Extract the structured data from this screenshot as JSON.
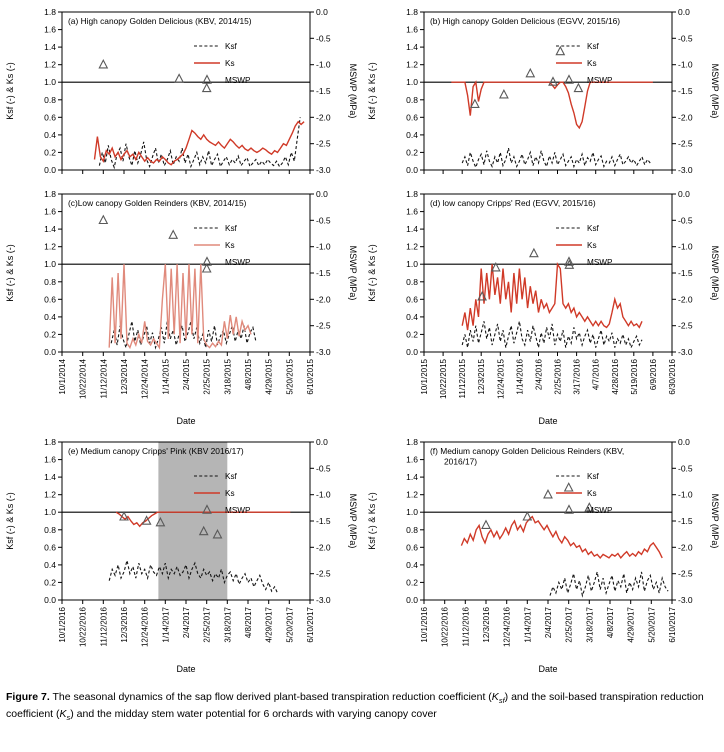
{
  "caption": {
    "label": "Figure 7.",
    "part1": " The seasonal dynamics of the sap flow derived plant-based transpiration reduction coefficient (",
    "k1": "K",
    "sub1": "sf",
    "part2": ") and the soil-based transpiration reduction coefficient (",
    "k2": "K",
    "sub2": "s",
    "part3": ") and the midday stem water potential for 6 orchards with varying canopy cover"
  },
  "axes": {
    "left_label": "Ksf (-) & Ks (-)",
    "right_label": "MSWP (MPa)",
    "x_label": "Date",
    "left_ticks": [
      0,
      0.2,
      0.4,
      0.6,
      0.8,
      1,
      1.2,
      1.4,
      1.6,
      1.8
    ],
    "right_ticks": [
      0,
      -0.5,
      -1,
      -1.5,
      -2,
      -2.5,
      -3
    ],
    "left_range": [
      0,
      1.8
    ],
    "right_range": [
      -3,
      0
    ],
    "ref_line": 1.0,
    "grid": false,
    "legend_position": "inside-upper-right"
  },
  "legend": {
    "ksf": "Ksf",
    "ks": "Ks",
    "mswp": "MSWP"
  },
  "colors": {
    "ks_red": "#d03a28",
    "ks_red_light": "#e08a7c",
    "ksf_black": "#141414",
    "marker": "#595959",
    "band": "#b5b5b5"
  },
  "xticks": {
    "s2014": [
      "10/1/2014",
      "10/22/2014",
      "11/12/2014",
      "12/3/2014",
      "12/24/2014",
      "1/14/2015",
      "2/4/2015",
      "2/25/2015",
      "3/18/2015",
      "4/8/2015",
      "4/29/2015",
      "5/20/2015",
      "6/10/2015"
    ],
    "s2015": [
      "10/1/2015",
      "10/22/2015",
      "11/12/2015",
      "12/3/2015",
      "12/24/2015",
      "1/14/2016",
      "2/4/2016",
      "2/25/2016",
      "3/17/2016",
      "4/7/2016",
      "4/28/2016",
      "5/19/2016",
      "6/9/2016",
      "6/30/2016"
    ],
    "s2016": [
      "10/1/2016",
      "10/22/2016",
      "11/12/2016",
      "12/3/2016",
      "12/24/2016",
      "1/14/2017",
      "2/4/2017",
      "2/25/2017",
      "3/18/2017",
      "4/8/2017",
      "4/29/2017",
      "5/20/2017",
      "6/10/2017"
    ]
  },
  "chart_data": [
    {
      "id": "a",
      "type": "line",
      "title_lines": [
        "(a) High canopy  Golden Delicious (KBV, 2014/15)"
      ],
      "xticks_key": "s2014",
      "span": 252,
      "show_x": false,
      "band": null,
      "ks": {
        "color_key": "ks_red",
        "start": 33,
        "step": 3,
        "values": [
          0.12,
          0.38,
          0.15,
          0.1,
          0.22,
          0.18,
          0.25,
          0.15,
          0.2,
          0.12,
          0.18,
          0.22,
          0.15,
          0.18,
          0.12,
          0.2,
          0.15,
          0.1,
          0.14,
          0.1,
          0.08,
          0.12,
          0.1,
          0.15,
          0.12,
          0.08,
          0.06,
          0.1,
          0.12,
          0.15,
          0.18,
          0.25,
          0.35,
          0.45,
          0.42,
          0.38,
          0.35,
          0.4,
          0.35,
          0.32,
          0.3,
          0.28,
          0.32,
          0.28,
          0.25,
          0.3,
          0.35,
          0.32,
          0.28,
          0.25,
          0.28,
          0.24,
          0.22,
          0.25,
          0.22,
          0.2,
          0.22,
          0.25,
          0.23,
          0.2,
          0.18,
          0.22,
          0.2,
          0.25,
          0.3,
          0.28,
          0.35,
          0.42,
          0.5,
          0.55,
          0.52,
          0.55
        ]
      },
      "ksf": {
        "start": 38,
        "step": 3,
        "values": [
          0.05,
          0.2,
          0.08,
          0.28,
          0.12,
          0.03,
          0.18,
          0.25,
          0.1,
          0.3,
          0.15,
          0.05,
          0.22,
          0.08,
          0.18,
          0.32,
          0.12,
          0.04,
          0.15,
          0.25,
          0.08,
          0.18,
          0.05,
          0.12,
          0.22,
          0.06,
          0.15,
          0.1,
          0.25,
          0.08,
          0.18,
          0.04,
          0.12,
          0.2,
          0.06,
          0.15,
          0.08,
          0.22,
          0.05,
          0.12,
          0.18,
          0.04,
          0.1,
          0.15,
          0.06,
          0.12,
          0.08,
          0.16,
          0.05,
          0.1,
          0.14,
          0.04,
          0.08,
          0.12,
          0.05,
          0.1,
          0.06,
          0.12,
          0.08,
          0.05,
          0.1,
          0.04,
          0.08,
          0.15,
          0.06,
          0.2,
          0.1,
          0.35,
          0.6
        ]
      },
      "mswp": [
        [
          42,
          -1.0
        ],
        [
          119,
          -1.27
        ],
        [
          147,
          -1.45
        ]
      ]
    },
    {
      "id": "b",
      "type": "line",
      "title_lines": [
        "(b) High canopy Golden Delicious (EGVV, 2015/16)"
      ],
      "xticks_key": "s2015",
      "span": 273,
      "show_x": false,
      "band": null,
      "ks": {
        "color_key": "ks_red",
        "start": 30,
        "step": 3,
        "values": [
          1,
          1,
          1,
          1,
          1,
          1,
          0.85,
          0.62,
          0.95,
          1,
          0.78,
          0.92,
          1,
          1,
          1,
          1,
          1,
          1,
          1,
          1,
          1,
          1,
          1,
          1,
          1,
          1,
          1,
          1,
          1,
          1,
          1,
          1,
          1,
          1,
          1,
          1,
          1,
          0.97,
          0.93,
          0.97,
          1,
          1,
          0.95,
          0.88,
          0.75,
          0.65,
          0.52,
          0.48,
          0.55,
          0.72,
          0.9,
          1,
          1,
          1,
          1,
          1,
          1,
          1,
          1,
          1,
          1,
          1,
          1,
          1,
          1,
          1,
          1,
          1,
          1,
          1,
          1,
          1,
          1,
          1,
          1
        ]
      },
      "ksf": {
        "start": 42,
        "step": 3,
        "values": [
          0.08,
          0.15,
          0.05,
          0.2,
          0.1,
          0.03,
          0.12,
          0.18,
          0.06,
          0.22,
          0.1,
          0.04,
          0.15,
          0.08,
          0.2,
          0.05,
          0.12,
          0.25,
          0.08,
          0.15,
          0.04,
          0.1,
          0.18,
          0.06,
          0.12,
          0.2,
          0.05,
          0.15,
          0.08,
          0.22,
          0.1,
          0.04,
          0.16,
          0.08,
          0.2,
          0.06,
          0.12,
          0.18,
          0.05,
          0.1,
          0.15,
          0.04,
          0.12,
          0.08,
          0.18,
          0.05,
          0.14,
          0.1,
          0.2,
          0.06,
          0.12,
          0.16,
          0.04,
          0.1,
          0.08,
          0.15,
          0.05,
          0.12,
          0.18,
          0.06,
          0.1,
          0.15,
          0.08,
          0.12,
          0.05,
          0.1,
          0.15,
          0.06,
          0.12,
          0.08
        ]
      },
      "mswp": [
        [
          56,
          -1.75
        ],
        [
          88,
          -1.57
        ],
        [
          117,
          -1.17
        ],
        [
          142,
          -1.33
        ],
        [
          150,
          -0.75
        ],
        [
          170,
          -1.45
        ]
      ]
    },
    {
      "id": "c",
      "type": "line",
      "title_lines": [
        "(c)Low canopy Golden Reinders (KBV, 2014/15)"
      ],
      "xticks_key": "s2014",
      "span": 252,
      "show_x": true,
      "band": null,
      "ks": {
        "color_key": "ks_red_light",
        "start": 48,
        "step": 3,
        "values": [
          0.05,
          0.85,
          0.1,
          0.9,
          0.15,
          1,
          0.1,
          0.05,
          0.15,
          0.08,
          0.2,
          0.1,
          0.35,
          0.12,
          0.08,
          0.15,
          0.1,
          0.05,
          0.6,
          1,
          0.15,
          0.95,
          0.2,
          1,
          0.1,
          0.9,
          0.15,
          1,
          0.2,
          0.95,
          0.1,
          1,
          0.15,
          0.08,
          0.05,
          0.1,
          0.06,
          0.12,
          0.08,
          0.35,
          0.15,
          0.42,
          0.2,
          0.4,
          0.18,
          0.35,
          0.25,
          0.3,
          0.2
        ]
      },
      "ksf": {
        "start": 50,
        "step": 3,
        "values": [
          0.1,
          0.25,
          0.08,
          0.3,
          0.15,
          0.05,
          0.2,
          0.35,
          0.12,
          0.25,
          0.08,
          0.18,
          0.3,
          0.1,
          0.22,
          0.05,
          0.15,
          0.28,
          0.1,
          0.35,
          0.15,
          0.25,
          0.08,
          0.2,
          0.3,
          0.12,
          0.22,
          0.35,
          0.15,
          0.28,
          0.1,
          0.2,
          0.05,
          0.25,
          0.12,
          0.3,
          0.08,
          0.18,
          0.25,
          0.1,
          0.2,
          0.3,
          0.12,
          0.25,
          0.15,
          0.3,
          0.1,
          0.22,
          0.28,
          0.12
        ]
      },
      "mswp": [
        [
          42,
          -0.5
        ],
        [
          113,
          -0.78
        ],
        [
          147,
          -1.42
        ]
      ]
    },
    {
      "id": "d",
      "type": "line",
      "title_lines": [
        "(d) low canopy  Cripps' Red (EGVV, 2015/16)"
      ],
      "xticks_key": "s2015",
      "span": 273,
      "show_x": true,
      "band": null,
      "ks": {
        "color_key": "ks_red",
        "start": 42,
        "step": 3,
        "values": [
          0.3,
          0.45,
          0.25,
          0.5,
          0.3,
          0.6,
          0.4,
          0.95,
          0.55,
          0.9,
          0.6,
          1,
          0.65,
          0.85,
          0.55,
          0.95,
          0.6,
          0.8,
          0.45,
          0.9,
          0.55,
          0.95,
          0.6,
          0.85,
          0.5,
          0.75,
          0.55,
          0.7,
          0.45,
          0.6,
          0.5,
          0.55,
          0.45,
          0.5,
          0.55,
          1,
          0.95,
          0.55,
          0.5,
          0.55,
          0.45,
          0.5,
          0.4,
          0.45,
          0.4,
          0.35,
          0.4,
          0.35,
          0.3,
          0.35,
          0.3,
          0.35,
          0.3,
          0.28,
          0.32,
          0.45,
          0.6,
          0.5,
          0.55,
          0.4,
          0.35,
          0.3,
          0.35,
          0.3,
          0.32,
          0.28,
          0.35
        ]
      },
      "ksf": {
        "start": 42,
        "step": 3,
        "values": [
          0.08,
          0.2,
          0.05,
          0.25,
          0.12,
          0.3,
          0.1,
          0.22,
          0.35,
          0.15,
          0.28,
          0.08,
          0.2,
          0.32,
          0.12,
          0.25,
          0.05,
          0.18,
          0.3,
          0.1,
          0.22,
          0.35,
          0.15,
          0.08,
          0.25,
          0.12,
          0.3,
          0.18,
          0.05,
          0.22,
          0.1,
          0.28,
          0.15,
          0.32,
          0.08,
          0.2,
          0.12,
          0.25,
          0.05,
          0.18,
          0.1,
          0.28,
          0.15,
          0.22,
          0.08,
          0.18,
          0.25,
          0.1,
          0.2,
          0.05,
          0.15,
          0.25,
          0.08,
          0.18,
          0.12,
          0.22,
          0.05,
          0.15,
          0.1,
          0.2,
          0.08,
          0.15,
          0.05,
          0.12,
          0.18,
          0.08,
          0.14
        ]
      },
      "mswp": [
        [
          64,
          -1.95
        ],
        [
          79,
          -1.4
        ],
        [
          121,
          -1.13
        ],
        [
          160,
          -1.35
        ]
      ]
    },
    {
      "id": "e",
      "type": "line",
      "title_lines": [
        "(e) Medium canopy Cripps' Pink (KBV 2016/17)"
      ],
      "xticks_key": "s2016",
      "span": 252,
      "show_x": true,
      "band": [
        98,
        168
      ],
      "ks": {
        "color_key": "ks_red",
        "start": 55,
        "step": 3,
        "values": [
          1,
          0.98,
          0.95,
          0.92,
          0.95,
          0.9,
          0.86,
          0.88,
          0.84,
          0.88,
          0.9,
          0.93,
          0.96,
          0.98,
          1,
          1,
          1,
          1,
          1,
          1,
          1,
          1,
          1,
          1,
          1,
          1,
          1,
          1,
          1,
          1,
          1,
          1,
          1,
          1,
          1,
          1,
          1,
          1,
          1,
          1,
          1,
          1,
          1,
          1,
          1,
          1,
          1,
          1,
          1,
          1,
          1,
          1,
          1,
          1,
          1,
          1,
          1,
          1,
          1,
          1
        ]
      },
      "ksf": {
        "start": 48,
        "step": 3,
        "values": [
          0.22,
          0.35,
          0.28,
          0.4,
          0.25,
          0.32,
          0.45,
          0.3,
          0.38,
          0.25,
          0.42,
          0.3,
          0.35,
          0.25,
          0.4,
          0.32,
          0.28,
          0.38,
          0.3,
          0.42,
          0.25,
          0.35,
          0.3,
          0.38,
          0.28,
          0.32,
          0.4,
          0.25,
          0.35,
          0.42,
          0.3,
          0.25,
          0.35,
          0.28,
          0.32,
          0.22,
          0.3,
          0.25,
          0.35,
          0.2,
          0.28,
          0.32,
          0.22,
          0.3,
          0.18,
          0.25,
          0.3,
          0.2,
          0.25,
          0.15,
          0.22,
          0.28,
          0.18,
          0.12,
          0.2,
          0.1,
          0.15,
          0.08
        ]
      },
      "mswp": [
        [
          63,
          -1.42
        ],
        [
          86,
          -1.5
        ],
        [
          100,
          -1.53
        ],
        [
          144,
          -1.7
        ],
        [
          158,
          -1.76
        ]
      ]
    },
    {
      "id": "f",
      "type": "line",
      "title_lines": [
        "(f) Medium canopy Golden Delicious Reinders (KBV,",
        "2016/17)"
      ],
      "xticks_key": "s2016",
      "span": 252,
      "show_x": true,
      "band": null,
      "ks": {
        "color_key": "ks_red",
        "start": 38,
        "step": 3,
        "values": [
          0.62,
          0.7,
          0.65,
          0.75,
          0.68,
          0.8,
          0.85,
          0.72,
          0.65,
          0.75,
          0.8,
          0.72,
          0.78,
          0.7,
          0.75,
          0.82,
          0.75,
          0.85,
          0.9,
          0.8,
          0.85,
          0.78,
          0.88,
          0.92,
          0.95,
          0.88,
          0.9,
          0.85,
          0.8,
          0.85,
          0.78,
          0.72,
          0.78,
          0.7,
          0.65,
          0.72,
          0.68,
          0.62,
          0.65,
          0.6,
          0.62,
          0.55,
          0.58,
          0.52,
          0.55,
          0.5,
          0.52,
          0.48,
          0.52,
          0.5,
          0.48,
          0.52,
          0.5,
          0.53,
          0.48,
          0.52,
          0.55,
          0.5,
          0.53,
          0.5,
          0.55,
          0.52,
          0.58,
          0.55,
          0.62,
          0.65,
          0.6,
          0.55,
          0.48
        ]
      },
      "ksf": {
        "start": 128,
        "step": 3,
        "values": [
          0.05,
          0.15,
          0.08,
          0.2,
          0.12,
          0.25,
          0.08,
          0.18,
          0.3,
          0.12,
          0.22,
          0.05,
          0.15,
          0.28,
          0.1,
          0.2,
          0.32,
          0.12,
          0.25,
          0.08,
          0.18,
          0.28,
          0.1,
          0.22,
          0.15,
          0.3,
          0.08,
          0.2,
          0.12,
          0.25,
          0.15,
          0.32,
          0.1,
          0.22,
          0.28,
          0.12,
          0.2,
          0.08,
          0.25,
          0.15,
          0.1
        ]
      },
      "mswp": [
        [
          63,
          -1.58
        ],
        [
          105,
          -1.42
        ],
        [
          126,
          -1.0
        ],
        [
          147,
          -0.87
        ],
        [
          168,
          -1.25
        ]
      ]
    }
  ]
}
